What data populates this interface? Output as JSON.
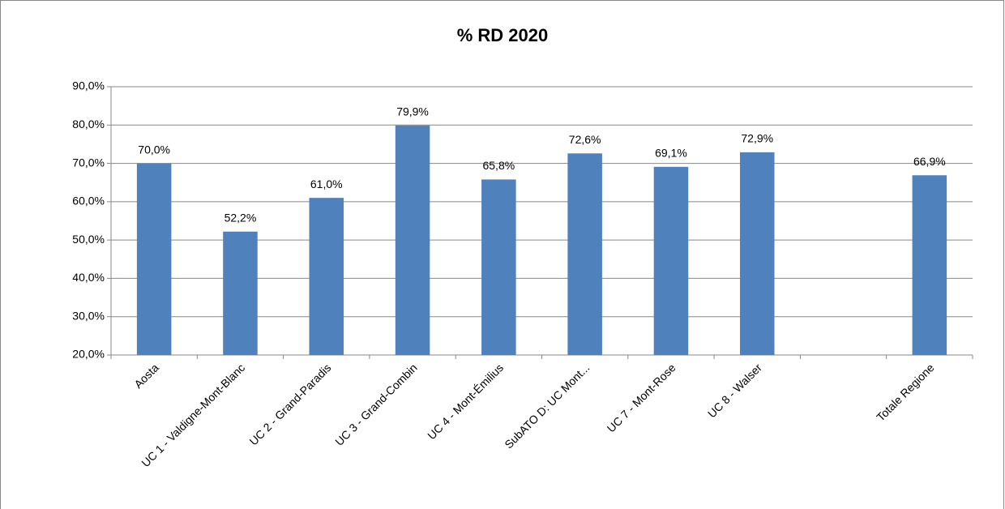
{
  "chart_data": {
    "type": "bar",
    "title": "% RD 2020",
    "categories": [
      "Aosta",
      "UC 1 - Valdigne-Mont-Blanc",
      "UC 2 - Grand-Paradis",
      "UC 3 - Grand-Combin",
      "UC 4 - Mont-Émilius",
      "SubATO D: UC Mont...",
      "UC 7 - Mont-Rose",
      "UC 8 - Walser",
      null,
      "Totale Regione"
    ],
    "values": [
      70.0,
      52.2,
      61.0,
      79.9,
      65.8,
      72.6,
      69.1,
      72.9,
      null,
      66.9
    ],
    "value_labels": [
      "70,0%",
      "52,2%",
      "61,0%",
      "79,9%",
      "65,8%",
      "72,6%",
      "69,1%",
      "72,9%",
      null,
      "66,9%"
    ],
    "color": "#4f81bd",
    "ylim": [
      20,
      90
    ],
    "yticks": [
      {
        "value": 20,
        "label": "20,0%"
      },
      {
        "value": 30,
        "label": "30,0%"
      },
      {
        "value": 40,
        "label": "40,0%"
      },
      {
        "value": 50,
        "label": "50,0%"
      },
      {
        "value": 60,
        "label": "60,0%"
      },
      {
        "value": 70,
        "label": "70,0%"
      },
      {
        "value": 80,
        "label": "80,0%"
      },
      {
        "value": 90,
        "label": "90,0%"
      }
    ],
    "grid": true
  }
}
